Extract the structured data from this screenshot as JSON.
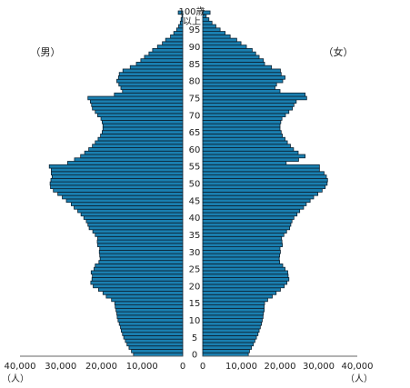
{
  "chart_data": {
    "type": "bar",
    "orientation": "horizontal",
    "layout": "population-pyramid",
    "age_ticks": [
      "0",
      "5",
      "10",
      "15",
      "20",
      "25",
      "30",
      "35",
      "40",
      "45",
      "50",
      "55",
      "60",
      "65",
      "70",
      "75",
      "80",
      "85",
      "90",
      "95"
    ],
    "top_label_lines": [
      "100歳",
      "以上"
    ],
    "x_ticks_left": [
      "40,000",
      "30,000",
      "20,000",
      "10,000",
      "0"
    ],
    "x_ticks_right": [
      "0",
      "10,000",
      "20,000",
      "30,000",
      "40,000"
    ],
    "x_unit": "（人）",
    "xlim": [
      0,
      40000
    ],
    "series": [
      {
        "name": "（男）",
        "side": "left",
        "values": [
          12100,
          12600,
          13200,
          13700,
          14100,
          14500,
          14800,
          15100,
          15300,
          15600,
          15900,
          16100,
          16200,
          16400,
          16600,
          16700,
          17500,
          18800,
          19600,
          20700,
          22000,
          22600,
          22300,
          22200,
          22500,
          21800,
          21500,
          20600,
          20300,
          20400,
          20500,
          20400,
          20900,
          21000,
          20900,
          21500,
          22100,
          23000,
          23300,
          23700,
          24300,
          25000,
          25800,
          26700,
          27400,
          28600,
          29600,
          30700,
          31800,
          32500,
          32600,
          32400,
          32100,
          32300,
          32300,
          32800,
          28300,
          26600,
          25100,
          24100,
          23100,
          22200,
          21500,
          20800,
          20200,
          19800,
          19600,
          19600,
          19800,
          20100,
          20900,
          21500,
          22200,
          22400,
          22700,
          23300,
          16800,
          14800,
          15200,
          15700,
          16200,
          15800,
          15600,
          14700,
          12900,
          11400,
          10300,
          9400,
          8300,
          7400,
          6200,
          5000,
          4200,
          3000,
          2200,
          1500,
          1000,
          600,
          400,
          200,
          1100
        ]
      },
      {
        "name": "（女）",
        "side": "right",
        "values": [
          11800,
          12100,
          12600,
          13100,
          13500,
          13900,
          14300,
          14600,
          14900,
          15200,
          15400,
          15600,
          15700,
          15900,
          15900,
          16000,
          16800,
          18000,
          19000,
          20100,
          21100,
          21800,
          22300,
          22100,
          22000,
          21300,
          20700,
          19900,
          19800,
          19900,
          20100,
          20000,
          20600,
          20500,
          20400,
          21000,
          21700,
          22500,
          22800,
          23100,
          23600,
          24400,
          25100,
          26100,
          26800,
          27800,
          28700,
          29800,
          30900,
          31700,
          32200,
          32300,
          32000,
          31400,
          30200,
          30200,
          21600,
          24800,
          26500,
          24700,
          23500,
          22700,
          21900,
          21300,
          20600,
          20300,
          20000,
          20000,
          20200,
          20500,
          21400,
          22300,
          23200,
          23600,
          24200,
          26900,
          26500,
          20000,
          18700,
          19100,
          20700,
          21300,
          20300,
          20100,
          17800,
          16000,
          15700,
          14600,
          13700,
          12800,
          11300,
          9900,
          8800,
          7100,
          5800,
          4500,
          3400,
          2400,
          1600,
          900,
          1900
        ]
      }
    ]
  }
}
